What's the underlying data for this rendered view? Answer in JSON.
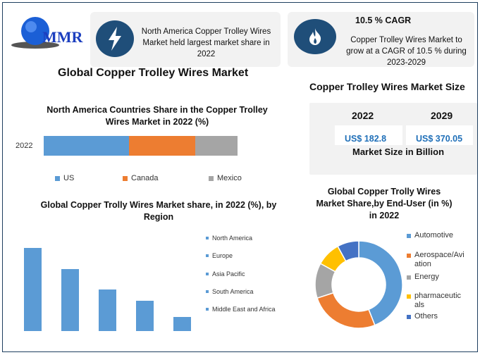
{
  "logo": {
    "text": "MMR"
  },
  "info_card_1": {
    "text": "North America Copper Trolley Wires Market held largest market share in 2022",
    "icon": "lightning-icon"
  },
  "info_card_2": {
    "title": "10.5 % CAGR",
    "text": "Copper Trolley Wires Market to grow at a CAGR of 10.5 % during 2023-2029",
    "icon": "flame-icon"
  },
  "main_title": "Global Copper Trolley Wires Market",
  "market_size": {
    "title": "Copper Trolley Wires Market Size",
    "years": [
      "2022",
      "2029"
    ],
    "values": [
      "US$ 182.8",
      "US$ 370.05"
    ],
    "caption": "Market Size in Billion"
  },
  "chart_data": [
    {
      "type": "bar",
      "stacked": true,
      "orientation": "horizontal",
      "title": "North America Countries Share in the Copper Trolley Wires Market in 2022 (%)",
      "categories": [
        "2022"
      ],
      "series": [
        {
          "name": "US",
          "values": [
            44
          ],
          "color": "#5b9bd5"
        },
        {
          "name": "Canada",
          "values": [
            34
          ],
          "color": "#ed7d31"
        },
        {
          "name": "Mexico",
          "values": [
            22
          ],
          "color": "#a5a5a5"
        }
      ],
      "legend": "bottom"
    },
    {
      "type": "bar",
      "title": "Global Copper Trolly Wires Market share, in 2022 (%), by Region",
      "categories": [
        "North America",
        "Europe",
        "Asia Pacific",
        "South America",
        "Middle East and Africa"
      ],
      "values": [
        36,
        27,
        18,
        13,
        6
      ],
      "color": "#5b9bd5",
      "legend": "right"
    },
    {
      "type": "pie",
      "donut": true,
      "title": "Global Copper Trolly Wires Market Share,by End-User (in %) in 2022",
      "labels": [
        "Automotive",
        "Aerospace/Aviation",
        "Energy",
        "pharmaceuticals",
        "Others"
      ],
      "legend_labels": [
        "Automotive",
        "Aerospace/Avi ation",
        " Energy",
        "pharmaceutic als",
        "Others"
      ],
      "values": [
        44,
        26,
        13,
        9,
        8
      ],
      "colors": [
        "#5b9bd5",
        "#ed7d31",
        "#a5a5a5",
        "#ffc000",
        "#4472c4"
      ],
      "legend": "right"
    }
  ]
}
